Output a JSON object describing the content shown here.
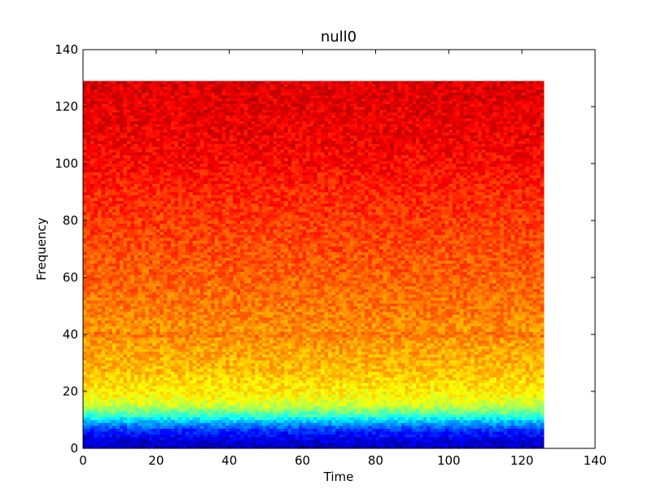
{
  "chart_data": {
    "type": "heatmap",
    "title": "null0",
    "xlabel": "Time",
    "ylabel": "Frequency",
    "xlim": [
      0,
      140
    ],
    "ylim": [
      0,
      140
    ],
    "x_ticks": [
      "0",
      "20",
      "40",
      "60",
      "80",
      "100",
      "120",
      "140"
    ],
    "y_ticks": [
      "0",
      "20",
      "40",
      "60",
      "80",
      "100",
      "120",
      "140"
    ],
    "colormap": "jet",
    "grid": false,
    "data_extent": {
      "time": [
        0,
        126
      ],
      "frequency": [
        0,
        129
      ]
    },
    "cell_size": {
      "time": 1,
      "frequency": 1
    },
    "frequency_profile": [
      {
        "frequency": 0,
        "level": 0.06
      },
      {
        "frequency": 3,
        "level": 0.09
      },
      {
        "frequency": 6,
        "level": 0.16
      },
      {
        "frequency": 8,
        "level": 0.24
      },
      {
        "frequency": 10,
        "level": 0.34
      },
      {
        "frequency": 12,
        "level": 0.45
      },
      {
        "frequency": 15,
        "level": 0.57
      },
      {
        "frequency": 18,
        "level": 0.62
      },
      {
        "frequency": 22,
        "level": 0.65
      },
      {
        "frequency": 26,
        "level": 0.68
      },
      {
        "frequency": 30,
        "level": 0.7
      },
      {
        "frequency": 39,
        "level": 0.73
      },
      {
        "frequency": 40,
        "level": 0.78
      },
      {
        "frequency": 41,
        "level": 0.73
      },
      {
        "frequency": 50,
        "level": 0.76
      },
      {
        "frequency": 60,
        "level": 0.78
      },
      {
        "frequency": 70,
        "level": 0.8
      },
      {
        "frequency": 80,
        "level": 0.82
      },
      {
        "frequency": 90,
        "level": 0.84
      },
      {
        "frequency": 100,
        "level": 0.87
      },
      {
        "frequency": 110,
        "level": 0.89
      },
      {
        "frequency": 120,
        "level": 0.9
      },
      {
        "frequency": 129,
        "level": 0.91
      }
    ],
    "noise_amplitude": 0.05
  }
}
